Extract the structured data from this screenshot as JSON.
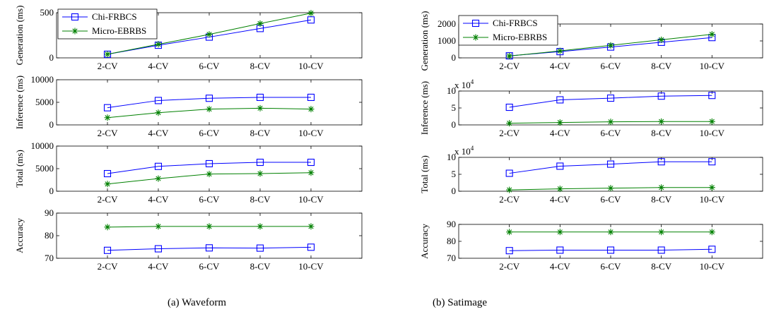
{
  "captions": {
    "a": "(a) Waveform",
    "b": "(b) Satimage"
  },
  "colors": {
    "chi": "#0000ff",
    "micro": "#008000"
  },
  "series_names": [
    "Chi-FRBCS",
    "Micro-EBRBS"
  ],
  "chart_data": [
    {
      "type": "line",
      "dataset": "Waveform",
      "ylabel": "Generation (ms)",
      "categories": [
        "2-CV",
        "4-CV",
        "6-CV",
        "8-CV",
        "10-CV"
      ],
      "yticks": [
        0,
        500
      ],
      "ylim": [
        0,
        500
      ],
      "legend": "top-left",
      "series": [
        {
          "name": "Chi-FRBCS",
          "marker": "square",
          "values": [
            40,
            140,
            230,
            325,
            420
          ]
        },
        {
          "name": "Micro-EBRBS",
          "marker": "star",
          "values": [
            40,
            150,
            260,
            380,
            495
          ]
        }
      ]
    },
    {
      "type": "line",
      "dataset": "Waveform",
      "ylabel": "Inference (ms)",
      "categories": [
        "2-CV",
        "4-CV",
        "6-CV",
        "8-CV",
        "10-CV"
      ],
      "yticks": [
        0,
        5000,
        10000
      ],
      "ylim": [
        0,
        10000
      ],
      "series": [
        {
          "name": "Chi-FRBCS",
          "marker": "square",
          "values": [
            3800,
            5400,
            5900,
            6100,
            6100
          ]
        },
        {
          "name": "Micro-EBRBS",
          "marker": "star",
          "values": [
            1600,
            2700,
            3500,
            3700,
            3500
          ]
        }
      ]
    },
    {
      "type": "line",
      "dataset": "Waveform",
      "ylabel": "Total (ms)",
      "categories": [
        "2-CV",
        "4-CV",
        "6-CV",
        "8-CV",
        "10-CV"
      ],
      "yticks": [
        0,
        5000,
        10000
      ],
      "ylim": [
        0,
        10000
      ],
      "series": [
        {
          "name": "Chi-FRBCS",
          "marker": "square",
          "values": [
            3900,
            5500,
            6100,
            6400,
            6400
          ]
        },
        {
          "name": "Micro-EBRBS",
          "marker": "star",
          "values": [
            1600,
            2800,
            3800,
            3900,
            4100
          ]
        }
      ]
    },
    {
      "type": "line",
      "dataset": "Waveform",
      "ylabel": "Accuracy",
      "categories": [
        "2-CV",
        "4-CV",
        "6-CV",
        "8-CV",
        "10-CV"
      ],
      "yticks": [
        70,
        80,
        90
      ],
      "ylim": [
        70,
        90
      ],
      "series": [
        {
          "name": "Chi-FRBCS",
          "marker": "square",
          "values": [
            73.5,
            74.2,
            74.6,
            74.5,
            74.9
          ]
        },
        {
          "name": "Micro-EBRBS",
          "marker": "star",
          "values": [
            83.8,
            84.1,
            84.1,
            84.1,
            84.1
          ]
        }
      ]
    },
    {
      "type": "line",
      "dataset": "Satimage",
      "ylabel": "Generation (ms)",
      "categories": [
        "2-CV",
        "4-CV",
        "6-CV",
        "8-CV",
        "10-CV"
      ],
      "yticks": [
        0,
        1000,
        2000
      ],
      "ylim": [
        0,
        2000
      ],
      "legend": "top-left",
      "series": [
        {
          "name": "Chi-FRBCS",
          "marker": "square",
          "values": [
            120,
            370,
            640,
            920,
            1200
          ]
        },
        {
          "name": "Micro-EBRBS",
          "marker": "star",
          "values": [
            110,
            410,
            740,
            1070,
            1390
          ]
        }
      ]
    },
    {
      "type": "line",
      "dataset": "Satimage",
      "ylabel": "Inference (ms)",
      "multiplier": "x 10",
      "multiplier_exp": "4",
      "categories": [
        "2-CV",
        "4-CV",
        "6-CV",
        "8-CV",
        "10-CV"
      ],
      "yticks": [
        0,
        5,
        10
      ],
      "ylim": [
        0,
        10
      ],
      "series": [
        {
          "name": "Chi-FRBCS",
          "marker": "square",
          "values": [
            5.2,
            7.4,
            7.9,
            8.5,
            8.7
          ]
        },
        {
          "name": "Micro-EBRBS",
          "marker": "star",
          "values": [
            0.5,
            0.7,
            0.9,
            1.0,
            1.0
          ]
        }
      ]
    },
    {
      "type": "line",
      "dataset": "Satimage",
      "ylabel": "Total (ms)",
      "multiplier": "x 10",
      "multiplier_exp": "4",
      "categories": [
        "2-CV",
        "4-CV",
        "6-CV",
        "8-CV",
        "10-CV"
      ],
      "yticks": [
        0,
        5,
        10
      ],
      "ylim": [
        0,
        10
      ],
      "series": [
        {
          "name": "Chi-FRBCS",
          "marker": "square",
          "values": [
            5.3,
            7.4,
            8.0,
            8.7,
            8.7
          ]
        },
        {
          "name": "Micro-EBRBS",
          "marker": "star",
          "values": [
            0.4,
            0.7,
            0.9,
            1.1,
            1.1
          ]
        }
      ]
    },
    {
      "type": "line",
      "dataset": "Satimage",
      "ylabel": "Accuracy",
      "categories": [
        "2-CV",
        "4-CV",
        "6-CV",
        "8-CV",
        "10-CV"
      ],
      "yticks": [
        70,
        80,
        90
      ],
      "ylim": [
        70,
        90
      ],
      "series": [
        {
          "name": "Chi-FRBCS",
          "marker": "square",
          "values": [
            74.5,
            74.8,
            74.8,
            74.8,
            75.3
          ]
        },
        {
          "name": "Micro-EBRBS",
          "marker": "star",
          "values": [
            85.5,
            85.5,
            85.5,
            85.5,
            85.5
          ]
        }
      ]
    }
  ]
}
